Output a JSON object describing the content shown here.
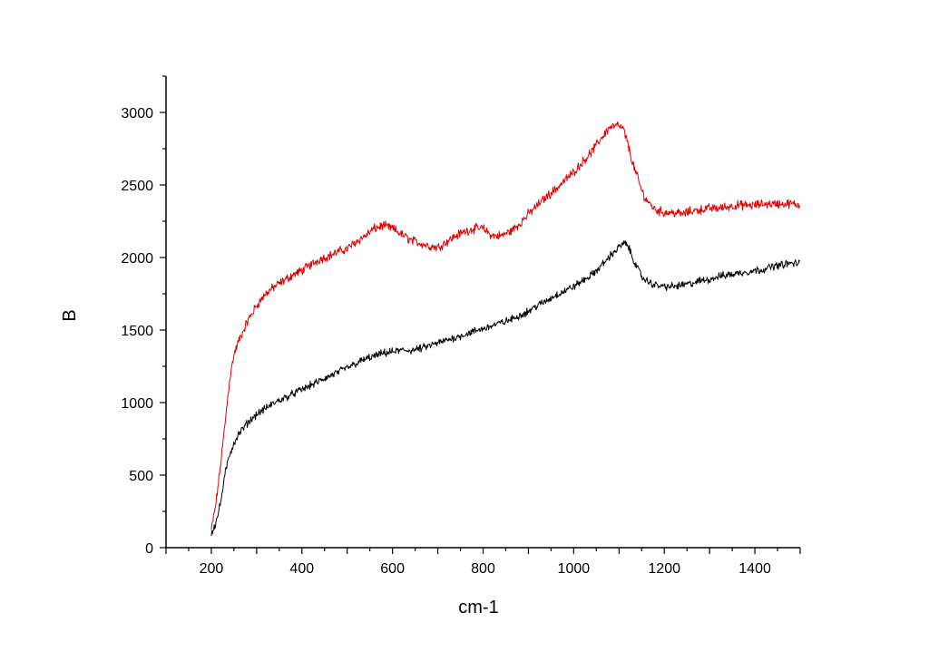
{
  "chart_data": {
    "type": "line",
    "title": "",
    "xlabel": "cm-1",
    "ylabel": "B",
    "xlim": [
      100,
      1500
    ],
    "ylim": [
      0,
      3250
    ],
    "xticks": [
      200,
      400,
      600,
      800,
      1000,
      1200,
      1400
    ],
    "yticks": [
      0,
      500,
      1000,
      1500,
      2000,
      2500,
      3000
    ],
    "grid": false,
    "legend": "none",
    "series": [
      {
        "color": "#e00000",
        "x": [
          200,
          210,
          220,
          230,
          240,
          250,
          260,
          280,
          300,
          320,
          340,
          360,
          380,
          400,
          420,
          440,
          460,
          480,
          500,
          520,
          540,
          560,
          580,
          600,
          620,
          640,
          660,
          680,
          700,
          720,
          740,
          760,
          780,
          800,
          820,
          840,
          860,
          880,
          900,
          920,
          940,
          960,
          980,
          1000,
          1020,
          1040,
          1060,
          1080,
          1100,
          1110,
          1120,
          1130,
          1140,
          1150,
          1160,
          1180,
          1200,
          1220,
          1240,
          1260,
          1280,
          1300,
          1320,
          1340,
          1360,
          1380,
          1400,
          1420,
          1440,
          1460,
          1480,
          1500
        ],
        "values": [
          120,
          300,
          560,
          850,
          1150,
          1330,
          1420,
          1560,
          1670,
          1750,
          1800,
          1840,
          1880,
          1910,
          1950,
          1990,
          2010,
          2040,
          2060,
          2110,
          2150,
          2200,
          2220,
          2200,
          2160,
          2120,
          2100,
          2080,
          2070,
          2110,
          2150,
          2180,
          2200,
          2200,
          2150,
          2150,
          2180,
          2230,
          2300,
          2360,
          2420,
          2470,
          2530,
          2590,
          2660,
          2730,
          2820,
          2900,
          2910,
          2880,
          2780,
          2650,
          2560,
          2460,
          2400,
          2330,
          2310,
          2310,
          2300,
          2320,
          2330,
          2340,
          2340,
          2350,
          2360,
          2360,
          2360,
          2370,
          2370,
          2370,
          2370,
          2360
        ]
      },
      {
        "color": "#000000",
        "x": [
          200,
          210,
          220,
          230,
          240,
          250,
          260,
          280,
          300,
          320,
          340,
          360,
          380,
          400,
          420,
          440,
          460,
          480,
          500,
          520,
          540,
          560,
          580,
          600,
          620,
          640,
          660,
          680,
          700,
          720,
          740,
          760,
          780,
          800,
          820,
          840,
          860,
          880,
          900,
          920,
          940,
          960,
          980,
          1000,
          1020,
          1040,
          1060,
          1080,
          1100,
          1110,
          1120,
          1130,
          1140,
          1150,
          1160,
          1180,
          1200,
          1220,
          1240,
          1260,
          1280,
          1300,
          1320,
          1340,
          1360,
          1380,
          1400,
          1420,
          1440,
          1460,
          1480,
          1500
        ],
        "values": [
          100,
          170,
          300,
          500,
          640,
          720,
          780,
          860,
          920,
          960,
          1000,
          1030,
          1060,
          1090,
          1120,
          1150,
          1180,
          1210,
          1240,
          1270,
          1300,
          1320,
          1340,
          1350,
          1360,
          1360,
          1370,
          1390,
          1410,
          1430,
          1450,
          1470,
          1490,
          1510,
          1530,
          1550,
          1570,
          1600,
          1630,
          1670,
          1700,
          1740,
          1770,
          1800,
          1840,
          1880,
          1940,
          2010,
          2070,
          2100,
          2080,
          2000,
          1930,
          1870,
          1840,
          1810,
          1800,
          1800,
          1810,
          1820,
          1840,
          1850,
          1870,
          1880,
          1890,
          1900,
          1910,
          1920,
          1940,
          1950,
          1960,
          1960
        ]
      }
    ]
  }
}
